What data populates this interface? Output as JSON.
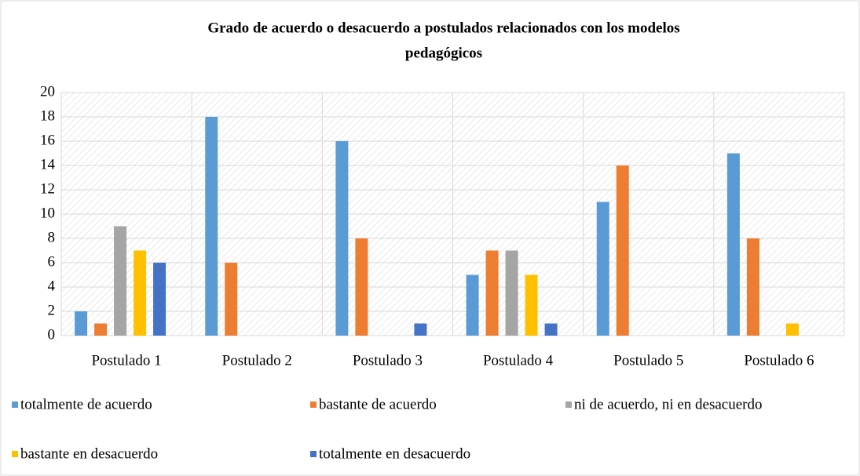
{
  "chart_data": {
    "type": "bar",
    "title": [
      "Grado de acuerdo o desacuerdo a postulados relacionados con los modelos",
      "pedagógicos"
    ],
    "categories": [
      "Postulado 1",
      "Postulado 2",
      "Postulado 3",
      "Postulado 4",
      "Postulado 5",
      "Postulado 6"
    ],
    "series": [
      {
        "name": "totalmente de acuerdo",
        "color": "#5b9bd5",
        "values": [
          2,
          18,
          16,
          5,
          11,
          15
        ]
      },
      {
        "name": "bastante de acuerdo",
        "color": "#ed7d31",
        "values": [
          1,
          6,
          8,
          7,
          14,
          8
        ]
      },
      {
        "name": "ni de acuerdo, ni en desacuerdo",
        "color": "#a5a5a5",
        "values": [
          9,
          0,
          0,
          7,
          0,
          0
        ]
      },
      {
        "name": "bastante en desacuerdo",
        "color": "#ffc000",
        "values": [
          7,
          0,
          0,
          5,
          0,
          1
        ]
      },
      {
        "name": "totalmente en desacuerdo",
        "color": "#4472c4",
        "values": [
          6,
          0,
          1,
          1,
          0,
          0
        ]
      }
    ],
    "ylim": [
      0,
      20
    ],
    "yticks": [
      0,
      2,
      4,
      6,
      8,
      10,
      12,
      14,
      16,
      18,
      20
    ],
    "grid": true,
    "legend": "bottom"
  }
}
